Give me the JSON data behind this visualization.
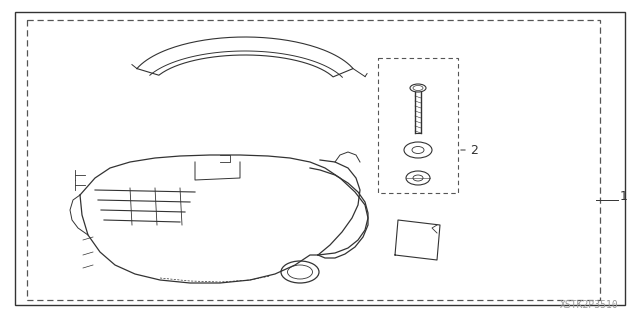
{
  "bg_color": "#ffffff",
  "line_color": "#333333",
  "dashed_color": "#555555",
  "text_color": "#333333",
  "watermark_color": "#999999",
  "watermark_text": "XSTK2P3510",
  "label1_text": "1",
  "label2_text": "2",
  "font_size_label": 9,
  "font_size_watermark": 7
}
